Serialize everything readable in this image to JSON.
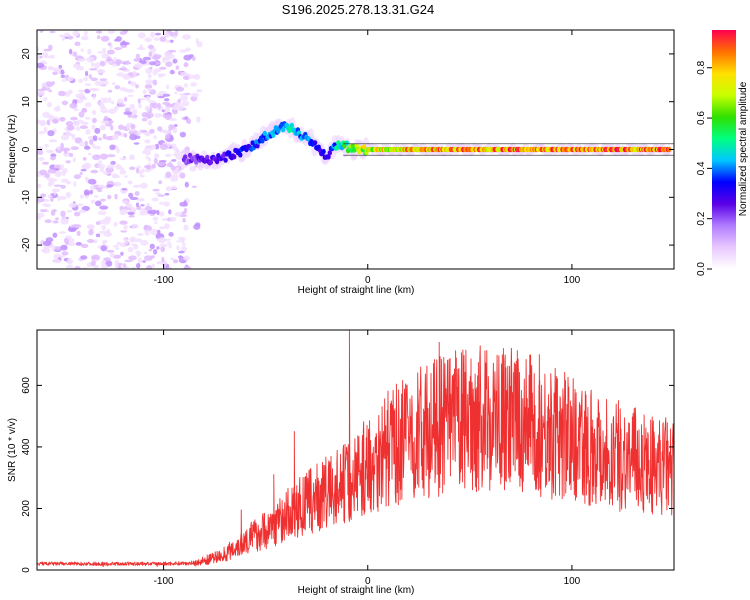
{
  "figure_title": "S196.2025.278.13.31.G24",
  "chart_data": [
    {
      "type": "heatmap",
      "title": "",
      "xlabel": "Height of straight line (km)",
      "ylabel": "Frequency (Hz)",
      "xlim": [
        -162,
        150
      ],
      "ylim": [
        -25,
        25
      ],
      "xticks": [
        -100,
        0,
        100
      ],
      "yticks": [
        -20,
        -10,
        0,
        10,
        20
      ],
      "grid": false,
      "noise_region_x": [
        -162,
        -88
      ],
      "ridge": {
        "x": [
          -90,
          -84,
          -78,
          -72,
          -66,
          -60,
          -55,
          -50,
          -45,
          -40,
          -36,
          -32,
          -28,
          -24,
          -20,
          -16,
          -12,
          -8,
          -4,
          0,
          20,
          50,
          80,
          110,
          148
        ],
        "y": [
          -2,
          -2,
          -2,
          -2,
          -1,
          0,
          1,
          3,
          4,
          5,
          4,
          3,
          2,
          0,
          -2,
          1,
          1,
          0,
          0,
          0,
          0,
          0,
          0,
          0,
          0
        ],
        "amplitude": [
          0.22,
          0.25,
          0.28,
          0.3,
          0.32,
          0.35,
          0.38,
          0.42,
          0.45,
          0.48,
          0.5,
          0.45,
          0.4,
          0.35,
          0.3,
          0.45,
          0.55,
          0.65,
          0.7,
          0.75,
          0.85,
          0.88,
          0.9,
          0.9,
          0.88
        ]
      },
      "colorbar": {
        "label": "Normalized spectral amplitude",
        "range": [
          0.0,
          0.95
        ],
        "ticks": [
          0.0,
          0.2,
          0.4,
          0.6,
          0.8
        ],
        "colormap": [
          "#ffffff",
          "#e9c8ff",
          "#b07cff",
          "#5a00e6",
          "#0000ff",
          "#00c8ff",
          "#00ff80",
          "#30e000",
          "#c8ff00",
          "#ffe000",
          "#ff7000",
          "#ff0050"
        ]
      }
    },
    {
      "type": "line",
      "title": "",
      "xlabel": "Height of straight line (km)",
      "ylabel": "SNR (10 * v/v)",
      "xlim": [
        -162,
        150
      ],
      "ylim": [
        0,
        780
      ],
      "xticks": [
        -100,
        0,
        100
      ],
      "yticks": [
        0,
        200,
        400,
        600
      ],
      "grid": false,
      "series": [
        {
          "name": "SNR",
          "color": "#ef3030",
          "x": [
            -162,
            -140,
            -120,
            -100,
            -85,
            -80,
            -75,
            -70,
            -65,
            -60,
            -55,
            -50,
            -45,
            -40,
            -35,
            -30,
            -25,
            -20,
            -15,
            -12,
            -10,
            -5,
            0,
            10,
            20,
            30,
            40,
            50,
            60,
            70,
            80,
            90,
            100,
            110,
            120,
            130,
            140,
            150
          ],
          "y": [
            22,
            22,
            22,
            22,
            25,
            35,
            45,
            60,
            85,
            110,
            130,
            150,
            175,
            200,
            225,
            245,
            265,
            285,
            305,
            320,
            330,
            360,
            390,
            450,
            490,
            520,
            545,
            560,
            560,
            555,
            540,
            510,
            490,
            460,
            430,
            410,
            390,
            380
          ],
          "peaks": [
            {
              "x": -62,
              "y": 195
            },
            {
              "x": -46,
              "y": 310
            },
            {
              "x": -36,
              "y": 450
            },
            {
              "x": -9,
              "y": 780
            },
            {
              "x": 35,
              "y": 740
            },
            {
              "x": 84,
              "y": 700
            }
          ]
        }
      ]
    }
  ]
}
